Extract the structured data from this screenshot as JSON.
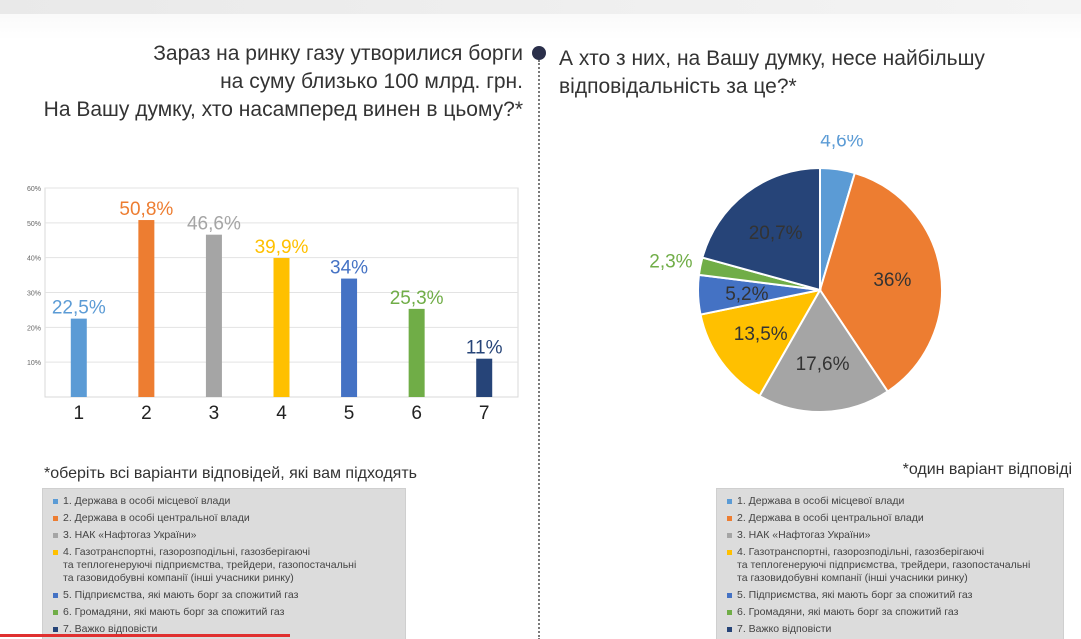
{
  "left_question": {
    "line1": "Зараз на ринку газу утворилися борги",
    "line2": "на суму близько  100 млрд. грн.",
    "line3": "На Вашу думку, хто насамперед винен в цьому?*"
  },
  "right_question": {
    "line1": "А хто з них, на Вашу думку, несе найбільшу",
    "line2": "відповідальність за це?*"
  },
  "left_note": "*оберіть всі варіанти відповідей, які вам підходять",
  "right_note": "*один варіант відповіді",
  "legend_items": [
    {
      "label": "1. Держава в особі місцевої влади",
      "color": "#5b9bd5"
    },
    {
      "label": "2. Держава в особі центральної влади",
      "color": "#ed7d31"
    },
    {
      "label": "3. НАК «Нафтогаз України»",
      "color": "#a5a5a5"
    },
    {
      "label": "4. Газотранспортні, газорозподільні, газозберігаючі\nта теплогенеруючі підприємства, трейдери, газопостачальні\nта газовидобувні компанії (інші учасники ринку)",
      "color": "#ffc000"
    },
    {
      "label": "5. Підприємства, які мають борг за спожитий газ",
      "color": "#4472c4"
    },
    {
      "label": "6. Громадяни, які мають борг за спожитий газ",
      "color": "#70ad47"
    },
    {
      "label": "7. Важко відповісти",
      "color": "#264478"
    }
  ],
  "chart_data": [
    {
      "type": "bar",
      "categories": [
        "1",
        "2",
        "3",
        "4",
        "5",
        "6",
        "7"
      ],
      "values": [
        22.5,
        50.8,
        46.6,
        39.9,
        34,
        25.3,
        11
      ],
      "value_labels": [
        "22,5%",
        "50,8%",
        "46,6%",
        "39,9%",
        "34%",
        "25,3%",
        "11%"
      ],
      "colors": [
        "#5b9bd5",
        "#ed7d31",
        "#a5a5a5",
        "#ffc000",
        "#4472c4",
        "#70ad47",
        "#264478"
      ],
      "yticks": [
        "10%",
        "20%",
        "30%",
        "40%",
        "50%",
        "60%"
      ],
      "ylim": [
        0,
        60
      ],
      "grid": true
    },
    {
      "type": "pie",
      "labels": [
        "1",
        "2",
        "3",
        "4",
        "5",
        "6",
        "7"
      ],
      "values": [
        4.6,
        36,
        17.6,
        13.5,
        5.2,
        2.3,
        20.7
      ],
      "value_labels": [
        "4,6%",
        "36%",
        "17,6%",
        "13,5%",
        "5,2%",
        "2,3%",
        "20,7%"
      ],
      "colors": [
        "#5b9bd5",
        "#ed7d31",
        "#a5a5a5",
        "#ffc000",
        "#4472c4",
        "#70ad47",
        "#264478"
      ],
      "label_colors": [
        "#5b9bd5",
        "#333333",
        "#333333",
        "#333333",
        "#333333",
        "#70ad47",
        "#333333"
      ]
    }
  ]
}
